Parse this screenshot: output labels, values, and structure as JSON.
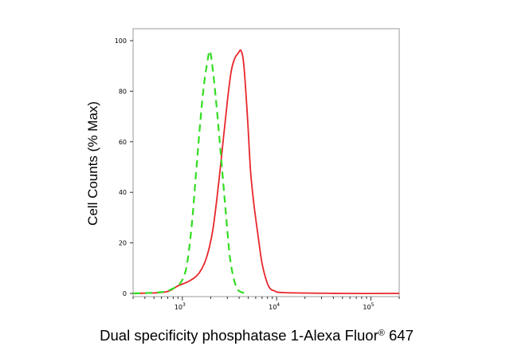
{
  "chart_data": {
    "type": "line",
    "title": "",
    "xlabel": "Dual specificity phosphatase 1-Alexa Fluor",
    "xlabel_sup": "®",
    "xlabel_suffix": " 647",
    "ylabel": "Cell Counts (% Max)",
    "x_scale": "log",
    "xlim": [
      300,
      200000
    ],
    "ylim": [
      0,
      100
    ],
    "y_ticks": [
      0,
      20,
      40,
      60,
      80,
      100
    ],
    "x_ticks": [
      {
        "value": 1000,
        "base": "10",
        "exp": "3"
      },
      {
        "value": 10000,
        "base": "10",
        "exp": "4"
      },
      {
        "value": 100000,
        "base": "10",
        "exp": "5"
      }
    ],
    "grid": false,
    "legend": false,
    "series": [
      {
        "color": "#e8262b",
        "style": "solid",
        "x": [
          300,
          650,
          900,
          1200,
          1500,
          1800,
          2100,
          2400,
          2700,
          3000,
          3300,
          3600,
          3900,
          4200,
          4500,
          4900,
          5300,
          5800,
          6400,
          7000,
          7800,
          8500,
          9500,
          12000,
          50000,
          200000
        ],
        "y": [
          0,
          0.5,
          3,
          5,
          8,
          14,
          25,
          42,
          60,
          76,
          88,
          93,
          95,
          96,
          90,
          70,
          48,
          34,
          22,
          12,
          5,
          2,
          1,
          0.3,
          0,
          0
        ]
      },
      {
        "color": "#33dd22",
        "style": "dashed",
        "x": [
          300,
          600,
          800,
          950,
          1100,
          1250,
          1400,
          1550,
          1700,
          1850,
          1950,
          2050,
          2200,
          2400,
          2600,
          2800,
          3000,
          3200,
          3500,
          3800,
          4200,
          5000
        ],
        "y": [
          0,
          0.5,
          2,
          4,
          10,
          26,
          48,
          68,
          83,
          92,
          96,
          92,
          82,
          67,
          52,
          38,
          25,
          14,
          6,
          2,
          0.5,
          0
        ]
      }
    ]
  }
}
